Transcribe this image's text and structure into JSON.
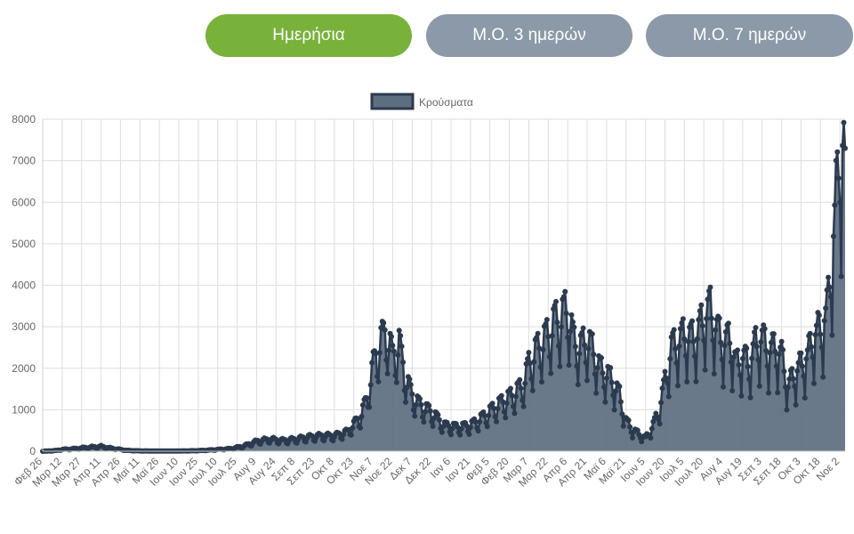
{
  "buttons": [
    {
      "label": "Ημερήσια",
      "active": true
    },
    {
      "label": "Μ.Ο. 3 ημερών",
      "active": false
    },
    {
      "label": "Μ.Ο. 7 ημερών",
      "active": false
    }
  ],
  "colors": {
    "active_button": "#78b23a",
    "inactive_button": "#8b99a8",
    "series_fill": "#5d6e80",
    "series_line": "#2b3a4e",
    "grid": "#dddddd",
    "axis_text": "#666666"
  },
  "chart_data": {
    "type": "area",
    "legend_position": "top",
    "grid": true,
    "ylim": [
      0,
      8000
    ],
    "yticks": [
      "0",
      "1000",
      "2000",
      "3000",
      "4000",
      "5000",
      "6000",
      "7000",
      "8000"
    ],
    "xticks": [
      "Φεβ 26",
      "Μαρ 12",
      "Μαρ 27",
      "Απρ 11",
      "Απρ 26",
      "Μαϊ 11",
      "Μαϊ 26",
      "Ιουν 10",
      "Ιουν 25",
      "Ιουλ 10",
      "Ιουλ 25",
      "Αυγ 9",
      "Αυγ 24",
      "Σεπ 8",
      "Σεπ 23",
      "Οκτ 8",
      "Οκτ 23",
      "Νοε 7",
      "Νοε 22",
      "Δεκ 7",
      "Δεκ 22",
      "Ιαν 6",
      "Ιαν 21",
      "Φεβ 5",
      "Φεβ 20",
      "Μαρ 7",
      "Μαρ 22",
      "Απρ 6",
      "Απρ 21",
      "Μαϊ 6",
      "Μαϊ 21",
      "Ιουν 5",
      "Ιουν 20",
      "Ιουλ 5",
      "Ιουλ 20",
      "Αυγ 4",
      "Αυγ 19",
      "Σεπ 3",
      "Σεπ 18",
      "Οκτ 3",
      "Οκτ 18",
      "Νοε 2"
    ],
    "series": [
      {
        "name": "Κρούσματα",
        "anchors": [
          [
            0,
            0
          ],
          [
            10,
            15
          ],
          [
            15,
            40
          ],
          [
            25,
            60
          ],
          [
            35,
            90
          ],
          [
            45,
            110
          ],
          [
            55,
            60
          ],
          [
            65,
            20
          ],
          [
            75,
            8
          ],
          [
            90,
            5
          ],
          [
            105,
            5
          ],
          [
            115,
            10
          ],
          [
            125,
            20
          ],
          [
            135,
            40
          ],
          [
            145,
            60
          ],
          [
            155,
            120
          ],
          [
            165,
            230
          ],
          [
            175,
            280
          ],
          [
            185,
            250
          ],
          [
            195,
            280
          ],
          [
            205,
            330
          ],
          [
            215,
            360
          ],
          [
            225,
            360
          ],
          [
            235,
            450
          ],
          [
            245,
            800
          ],
          [
            250,
            1200
          ],
          [
            255,
            2000
          ],
          [
            260,
            2500
          ],
          [
            265,
            2800
          ],
          [
            270,
            2200
          ],
          [
            275,
            2500
          ],
          [
            280,
            1700
          ],
          [
            285,
            1300
          ],
          [
            290,
            1100
          ],
          [
            300,
            900
          ],
          [
            310,
            600
          ],
          [
            320,
            560
          ],
          [
            330,
            600
          ],
          [
            340,
            800
          ],
          [
            350,
            1050
          ],
          [
            360,
            1250
          ],
          [
            370,
            1500
          ],
          [
            375,
            2000
          ],
          [
            380,
            2300
          ],
          [
            385,
            2500
          ],
          [
            390,
            2700
          ],
          [
            395,
            3000
          ],
          [
            400,
            3100
          ],
          [
            405,
            3300
          ],
          [
            410,
            2500
          ],
          [
            415,
            2400
          ],
          [
            420,
            2600
          ],
          [
            425,
            2300
          ],
          [
            430,
            1900
          ],
          [
            435,
            1800
          ],
          [
            440,
            1600
          ],
          [
            445,
            1300
          ],
          [
            450,
            700
          ],
          [
            455,
            500
          ],
          [
            460,
            400
          ],
          [
            465,
            300
          ],
          [
            470,
            550
          ],
          [
            475,
            900
          ],
          [
            480,
            1600
          ],
          [
            485,
            2400
          ],
          [
            490,
            2500
          ],
          [
            495,
            2700
          ],
          [
            500,
            2600
          ],
          [
            505,
            2700
          ],
          [
            510,
            3100
          ],
          [
            515,
            3300
          ],
          [
            520,
            2800
          ],
          [
            525,
            2500
          ],
          [
            530,
            2600
          ],
          [
            535,
            2000
          ],
          [
            540,
            2200
          ],
          [
            545,
            2000
          ],
          [
            550,
            2500
          ],
          [
            555,
            2600
          ],
          [
            560,
            2300
          ],
          [
            565,
            2400
          ],
          [
            570,
            2200
          ],
          [
            575,
            1500
          ],
          [
            580,
            1800
          ],
          [
            585,
            2000
          ],
          [
            590,
            2200
          ],
          [
            595,
            2700
          ],
          [
            600,
            2800
          ],
          [
            605,
            3200
          ],
          [
            610,
            5000
          ],
          [
            615,
            6900
          ],
          [
            619,
            7300
          ]
        ]
      }
    ]
  }
}
